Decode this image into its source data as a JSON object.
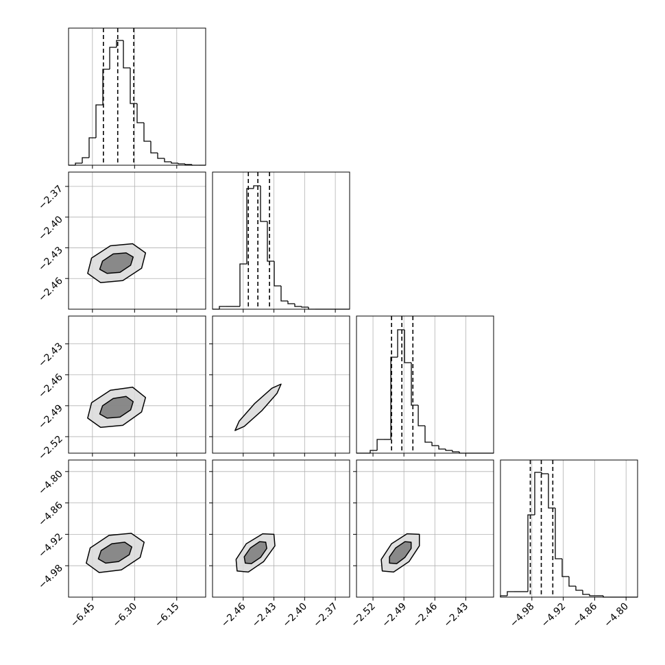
{
  "chart_data": {
    "type": "corner",
    "color": "#000000",
    "grid": true,
    "hist_ylim": [
      0,
      1000
    ],
    "params": [
      {
        "lim": [
          -6.535,
          -6.047
        ],
        "ticks": [
          {
            "value": -6.45,
            "label": "−6.45"
          },
          {
            "value": -6.3,
            "label": "−6.30"
          },
          {
            "value": -6.15,
            "label": "−6.15"
          }
        ],
        "bins": [
          -6.535,
          -6.5106,
          -6.4862,
          -6.4618,
          -6.4374,
          -6.413,
          -6.3886,
          -6.3642,
          -6.3398,
          -6.3154,
          -6.291,
          -6.2666,
          -6.2422,
          -6.2178,
          -6.1934,
          -6.169,
          -6.1446,
          -6.1202,
          -6.0958,
          -6.0714,
          -6.047
        ],
        "counts": [
          0,
          15,
          55,
          200,
          440,
          700,
          860,
          910,
          710,
          450,
          310,
          175,
          90,
          50,
          25,
          15,
          10,
          5,
          0,
          0
        ],
        "quantiles": [
          -6.411,
          -6.36,
          -6.303
        ]
      },
      {
        "lim": [
          -2.49,
          -2.356
        ],
        "ticks": [
          {
            "value": -2.46,
            "label": "−2.46"
          },
          {
            "value": -2.43,
            "label": "−2.43"
          },
          {
            "value": -2.4,
            "label": "−2.40"
          },
          {
            "value": -2.37,
            "label": "−2.37"
          }
        ],
        "bins": [
          -2.49,
          -2.4833,
          -2.4766,
          -2.4699,
          -2.4632,
          -2.4565,
          -2.4498,
          -2.4431,
          -2.4364,
          -2.4297,
          -2.423,
          -2.4163,
          -2.4096,
          -2.4029,
          -2.3962,
          -2.3895,
          -2.3828,
          -2.3761,
          -2.3694,
          -2.3627,
          -2.356
        ],
        "counts": [
          0,
          20,
          20,
          20,
          330,
          880,
          900,
          640,
          350,
          170,
          60,
          40,
          20,
          15,
          0,
          0,
          0,
          0,
          0,
          0
        ],
        "quantiles": [
          -2.455,
          -2.4457,
          -2.4343
        ]
      },
      {
        "lim": [
          -2.536,
          -2.403
        ],
        "ticks": [
          {
            "value": -2.52,
            "label": "−2.52"
          },
          {
            "value": -2.49,
            "label": "−2.49"
          },
          {
            "value": -2.46,
            "label": "−2.46"
          },
          {
            "value": -2.43,
            "label": "−2.43"
          }
        ],
        "bins": [
          -2.536,
          -2.5293,
          -2.5227,
          -2.516,
          -2.5094,
          -2.5027,
          -2.4961,
          -2.4894,
          -2.4828,
          -2.4761,
          -2.4695,
          -2.4628,
          -2.4562,
          -2.4495,
          -2.4429,
          -2.4362,
          -2.4296,
          -2.4229,
          -2.4163,
          -2.4096,
          -2.403
        ],
        "counts": [
          0,
          0,
          20,
          100,
          100,
          700,
          900,
          660,
          350,
          200,
          80,
          55,
          30,
          20,
          10,
          0,
          0,
          0,
          0,
          0
        ],
        "quantiles": [
          -2.502,
          -2.492,
          -2.4813
        ]
      },
      {
        "lim": [
          -5.04,
          -4.778
        ],
        "ticks": [
          {
            "value": -4.98,
            "label": "−4.98"
          },
          {
            "value": -4.92,
            "label": "−4.92"
          },
          {
            "value": -4.86,
            "label": "−4.86"
          },
          {
            "value": -4.8,
            "label": "−4.80"
          }
        ],
        "bins": [
          -5.04,
          -5.0269,
          -5.0138,
          -5.0007,
          -4.9876,
          -4.9745,
          -4.9614,
          -4.9483,
          -4.9352,
          -4.9221,
          -4.909,
          -4.8959,
          -4.8828,
          -4.8697,
          -4.8566,
          -4.8435,
          -4.8304,
          -4.8173,
          -4.8042,
          -4.7911,
          -4.778
        ],
        "counts": [
          10,
          40,
          40,
          40,
          600,
          910,
          900,
          650,
          280,
          150,
          80,
          50,
          20,
          10,
          10,
          0,
          0,
          0,
          0,
          0
        ],
        "quantiles": [
          -4.983,
          -4.962,
          -4.94
        ]
      }
    ],
    "pairs": [
      [
        {
          "contours": [
            {
              "x": [
                -6.261,
                -6.275,
                -6.342,
                -6.421,
                -6.467,
                -6.453,
                -6.386,
                -6.307
              ],
              "y": [
                -2.435,
                -2.45,
                -2.462,
                -2.464,
                -2.455,
                -2.44,
                -2.428,
                -2.426
              ]
            },
            {
              "x": [
                -6.305,
                -6.314,
                -6.352,
                -6.398,
                -6.424,
                -6.414,
                -6.376,
                -6.33
              ],
              "y": [
                -2.439,
                -2.447,
                -2.454,
                -2.455,
                -2.451,
                -2.443,
                -2.436,
                -2.435
              ]
            }
          ]
        }
      ],
      [
        {
          "contours": [
            {
              "x": [
                -6.261,
                -6.275,
                -6.342,
                -6.421,
                -6.467,
                -6.453,
                -6.386,
                -6.307
              ],
              "y": [
                -2.482,
                -2.496,
                -2.509,
                -2.511,
                -2.502,
                -2.487,
                -2.475,
                -2.472
              ]
            },
            {
              "x": [
                -6.305,
                -6.314,
                -6.352,
                -6.398,
                -6.424,
                -6.414,
                -6.376,
                -6.33
              ],
              "y": [
                -2.486,
                -2.494,
                -2.501,
                -2.502,
                -2.498,
                -2.49,
                -2.483,
                -2.481
              ]
            }
          ]
        },
        {
          "contours": [
            {
              "x": [
                -2.423,
                -2.427,
                -2.442,
                -2.459,
                -2.468,
                -2.464,
                -2.449,
                -2.432
              ],
              "y": [
                -2.469,
                -2.478,
                -2.495,
                -2.51,
                -2.514,
                -2.505,
                -2.488,
                -2.473
              ]
            }
          ]
        }
      ],
      [
        {
          "contours": [
            {
              "x": [
                -6.266,
                -6.28,
                -6.347,
                -6.426,
                -6.472,
                -6.458,
                -6.391,
                -6.312
              ],
              "y": [
                -4.935,
                -4.964,
                -4.988,
                -4.993,
                -4.975,
                -4.946,
                -4.922,
                -4.918
              ]
            },
            {
              "x": [
                -6.31,
                -6.319,
                -6.357,
                -6.403,
                -6.429,
                -6.419,
                -6.381,
                -6.335
              ],
              "y": [
                -4.944,
                -4.959,
                -4.972,
                -4.975,
                -4.967,
                -4.951,
                -4.938,
                -4.935
              ]
            }
          ]
        },
        {
          "contours": [
            {
              "x": [
                -2.43,
                -2.429,
                -2.44,
                -2.455,
                -2.466,
                -2.467,
                -2.457,
                -2.441
              ],
              "y": [
                -4.92,
                -4.942,
                -4.972,
                -4.992,
                -4.99,
                -4.968,
                -4.938,
                -4.919
              ]
            },
            {
              "x": [
                -2.438,
                -2.437,
                -2.443,
                -2.452,
                -2.458,
                -2.459,
                -2.453,
                -2.444
              ],
              "y": [
                -4.935,
                -4.947,
                -4.964,
                -4.976,
                -4.975,
                -4.963,
                -4.946,
                -4.934
              ]
            }
          ]
        },
        {
          "contours": [
            {
              "x": [
                -2.475,
                -2.475,
                -2.485,
                -2.5,
                -2.511,
                -2.512,
                -2.502,
                -2.487
              ],
              "y": [
                -4.92,
                -4.942,
                -4.972,
                -4.992,
                -4.99,
                -4.968,
                -4.938,
                -4.919
              ]
            },
            {
              "x": [
                -2.483,
                -2.483,
                -2.489,
                -2.497,
                -2.504,
                -2.504,
                -2.498,
                -2.489
              ],
              "y": [
                -4.935,
                -4.947,
                -4.964,
                -4.976,
                -4.975,
                -4.963,
                -4.946,
                -4.934
              ]
            }
          ]
        }
      ]
    ]
  }
}
